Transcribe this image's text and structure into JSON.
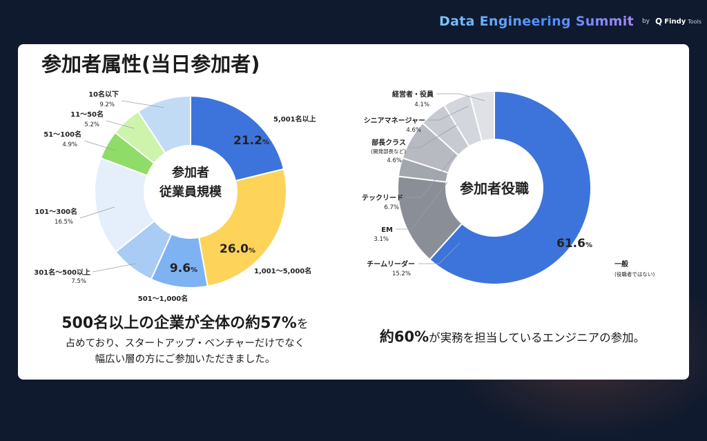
{
  "brand": {
    "title": "Data Engineering Summit",
    "by": "by",
    "logo_mark": "Q",
    "logo_name": "Findy",
    "logo_suffix": "Tools"
  },
  "page_title": "参加者属性(当日参加者)",
  "colors": {
    "background": "#0f1a2e",
    "card": "#ffffff",
    "blue": "#3d74db",
    "yellow": "#fdd35a"
  },
  "chart_data": [
    {
      "type": "pie",
      "center_label": [
        "参加者",
        "従業員規模"
      ],
      "slices": [
        {
          "label": "5,001名以上",
          "value": 21.2,
          "value_text": "21.2",
          "color": "#3d74db",
          "inner": true
        },
        {
          "label": "1,001〜5,000名",
          "value": 26.0,
          "value_text": "26.0",
          "color": "#fdd35a",
          "inner": true
        },
        {
          "label": "501〜1,000名",
          "value": 9.6,
          "value_text": "9.6",
          "color": "#7eb2f2",
          "inner": true
        },
        {
          "label": "301名〜500以上",
          "value": 7.5,
          "value_text": "7.5%",
          "color": "#a9ccf4",
          "inner": false
        },
        {
          "label": "101〜300名",
          "value": 16.5,
          "value_text": "16.5%",
          "color": "#e5effb",
          "inner": false
        },
        {
          "label": "51〜100名",
          "value": 4.9,
          "value_text": "4.9%",
          "color": "#8fdc68",
          "inner": false
        },
        {
          "label": "11〜50名",
          "value": 5.2,
          "value_text": "5.2%",
          "color": "#cdf3ac",
          "inner": false
        },
        {
          "label": "10名以下",
          "value": 9.2,
          "value_text": "9.2%",
          "color": "#c2dbf5",
          "inner": false
        }
      ]
    },
    {
      "type": "pie",
      "center_label": [
        "参加者役職"
      ],
      "slices": [
        {
          "label": "一般",
          "sublabel": "(役職者ではない)",
          "value": 61.6,
          "value_text": "61.6",
          "color": "#3d74db",
          "inner": true
        },
        {
          "label": "チームリーダー",
          "value": 15.2,
          "value_text": "15.2%",
          "color": "#8a8e96",
          "inner": false
        },
        {
          "label": "EM",
          "value": 3.1,
          "value_text": "3.1%",
          "color": "#a2a6ad",
          "inner": false
        },
        {
          "label": "テックリード",
          "value": 6.7,
          "value_text": "6.7%",
          "color": "#b7bac1",
          "inner": false
        },
        {
          "label": "部長クラス",
          "sublabel": "(開発部長など)",
          "value": 4.6,
          "value_text": "4.6%",
          "color": "#c7cad1",
          "inner": false
        },
        {
          "label": "シニアマネージャー",
          "value": 4.6,
          "value_text": "4.6%",
          "color": "#d3d6dc",
          "inner": false
        },
        {
          "label": "経営者・役員",
          "value": 4.1,
          "value_text": "4.1%",
          "color": "#dfe1e6",
          "inner": false
        }
      ]
    }
  ],
  "captions": {
    "left_bold": "500名以上の企業が全体の約57%",
    "left_tail": "を",
    "left_line2": "占めており、スタートアップ・ベンチャーだけでなく",
    "left_line3": "幅広い層の方にご参加いただきました。",
    "right_bold": "約60%",
    "right_tail": "が実務を担当しているエンジニアの参加。"
  }
}
